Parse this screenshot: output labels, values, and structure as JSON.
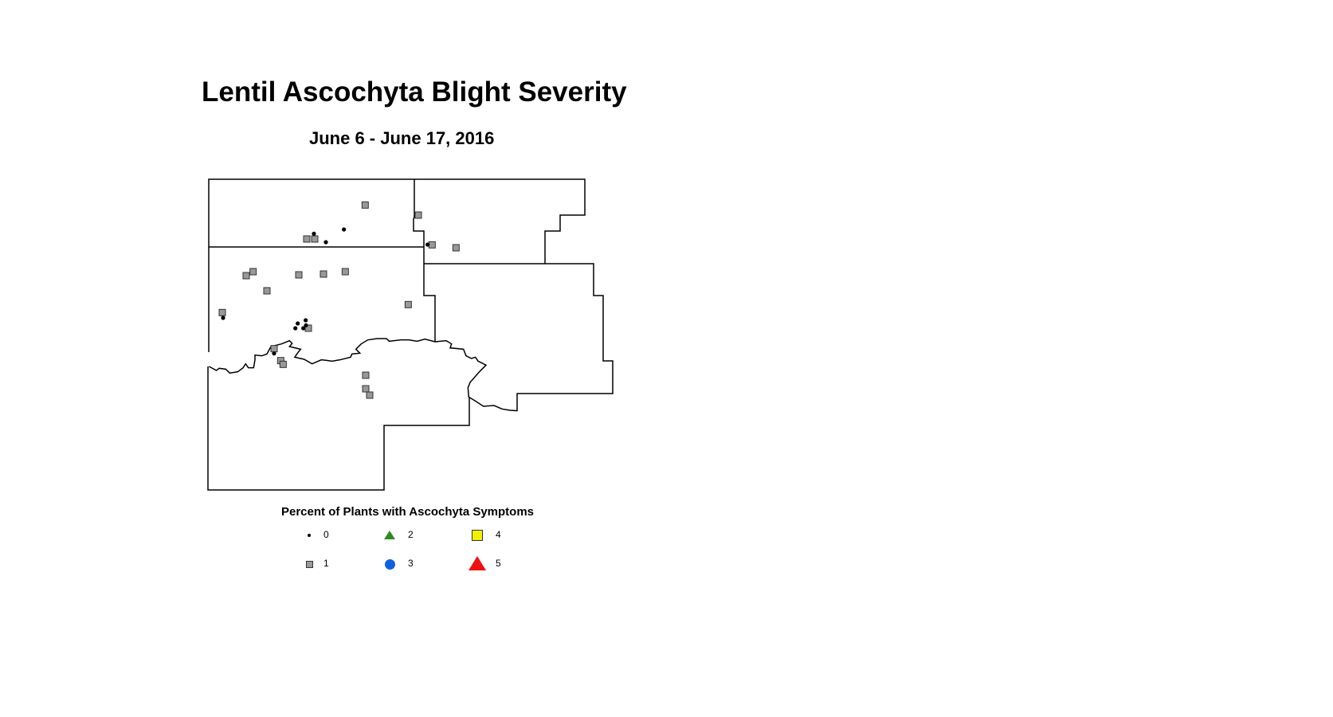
{
  "title": "Lentil Ascochyta Blight Severity",
  "subtitle": "June 6 - June 17, 2016",
  "legend": {
    "title": "Percent of Plants with Ascochyta Symptoms",
    "items": [
      {
        "label": "0",
        "symbol": "small-dot",
        "color": "#000000"
      },
      {
        "label": "1",
        "symbol": "square",
        "color": "#999999"
      },
      {
        "label": "2",
        "symbol": "triangle",
        "color": "#2e8b1e"
      },
      {
        "label": "3",
        "symbol": "circle",
        "color": "#1060e0"
      },
      {
        "label": "4",
        "symbol": "square",
        "color": "#f0f000"
      },
      {
        "label": "5",
        "symbol": "triangle",
        "color": "#ee1111"
      }
    ]
  },
  "site_counts": {
    "0": 11,
    "1": 21,
    "2": 0,
    "3": 0,
    "4": 0,
    "5": 0
  }
}
